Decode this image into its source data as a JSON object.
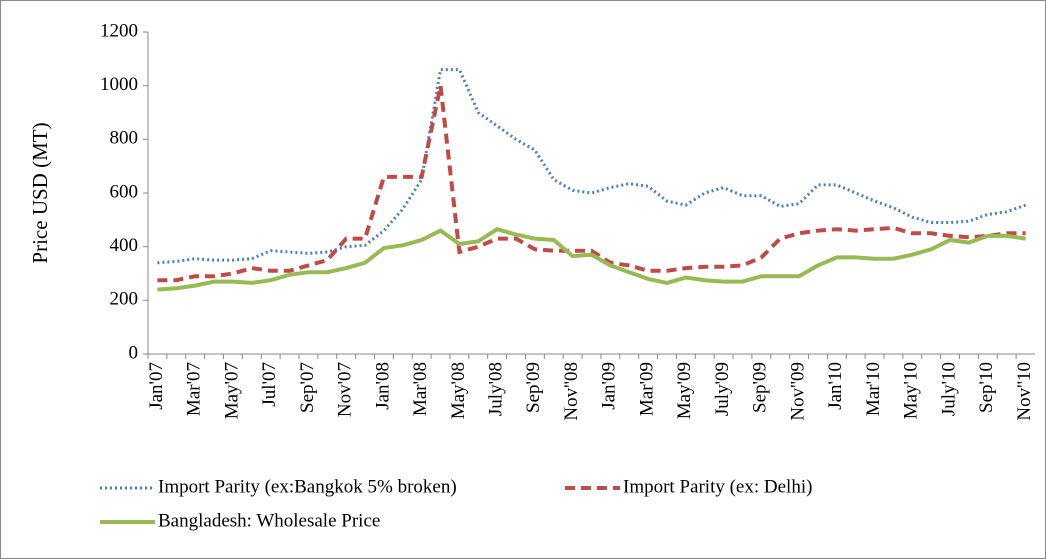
{
  "chart_data": {
    "type": "line",
    "y_label": "Price USD (MT)",
    "categories": [
      "Jan'07",
      null,
      "Mar'07",
      null,
      "May'07",
      null,
      "Jul'07",
      null,
      "Sep'07",
      null,
      "Nov'07",
      null,
      "Jan'08",
      null,
      "Mar'08",
      null,
      "May'08",
      null,
      "July'08",
      null,
      "Sep'09",
      null,
      "Nov''08",
      null,
      "Jan'09",
      null,
      "Mar'09",
      null,
      "May'09",
      null,
      "July'09",
      null,
      "Sep'09",
      null,
      "Nov''09",
      null,
      "Jan'10",
      null,
      "Mar'10",
      null,
      "May'10",
      null,
      "July'10",
      null,
      "Sep'10",
      null,
      "Nov''10"
    ],
    "series": [
      {
        "name": "Import Parity (ex:Bangkok 5% broken)",
        "color": "#4a7ebb",
        "dash": "2,3",
        "values": [
          340,
          345,
          355,
          350,
          350,
          355,
          385,
          380,
          375,
          380,
          400,
          405,
          460,
          540,
          650,
          1060,
          1060,
          900,
          850,
          800,
          760,
          650,
          610,
          600,
          620,
          635,
          625,
          570,
          555,
          600,
          620,
          590,
          590,
          550,
          560,
          630,
          630,
          600,
          570,
          545,
          510,
          490,
          490,
          495,
          520,
          530,
          555
        ]
      },
      {
        "name": "Import Parity (ex: Delhi)",
        "color": "#be4b48",
        "dash": "10,6",
        "values": [
          275,
          275,
          290,
          290,
          300,
          320,
          310,
          310,
          330,
          350,
          430,
          430,
          660,
          660,
          660,
          1000,
          380,
          400,
          430,
          430,
          390,
          385,
          385,
          385,
          340,
          330,
          310,
          310,
          320,
          325,
          325,
          330,
          360,
          430,
          450,
          460,
          465,
          460,
          465,
          470,
          450,
          450,
          440,
          435,
          440,
          450,
          450
        ]
      },
      {
        "name": "Bangladesh: Wholesale Price",
        "color": "#98b954",
        "dash": "none",
        "values": [
          240,
          245,
          255,
          270,
          270,
          265,
          275,
          295,
          305,
          305,
          320,
          340,
          395,
          405,
          425,
          460,
          410,
          420,
          465,
          445,
          430,
          425,
          365,
          370,
          330,
          305,
          280,
          265,
          285,
          275,
          270,
          270,
          290,
          290,
          290,
          330,
          360,
          360,
          355,
          355,
          370,
          390,
          425,
          415,
          440,
          440,
          430
        ]
      }
    ],
    "ylim": [
      0,
      1200
    ],
    "yticks": [
      0,
      200,
      400,
      600,
      800,
      1000,
      1200
    ],
    "grid": false
  }
}
